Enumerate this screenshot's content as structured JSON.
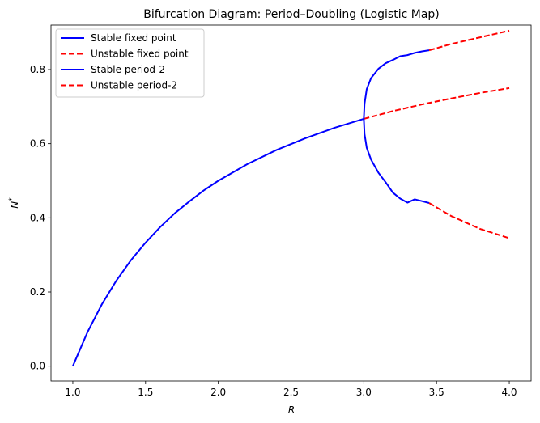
{
  "chart_data": {
    "type": "line",
    "title": "Bifurcation Diagram: Period–Doubling (Logistic Map)",
    "xlabel": "R",
    "ylabel": "N*",
    "xlim": [
      0.85,
      4.15
    ],
    "ylim": [
      -0.04,
      0.92
    ],
    "xticks": [
      "1.0",
      "1.5",
      "2.0",
      "2.5",
      "3.0",
      "3.5",
      "4.0"
    ],
    "yticks": [
      "0.0",
      "0.2",
      "0.4",
      "0.6",
      "0.8"
    ],
    "legend_position": "top-left",
    "grid": false,
    "series": [
      {
        "name": "Stable fixed point",
        "color": "#0000ff",
        "style": "solid",
        "x": [
          1.0,
          1.1,
          1.2,
          1.3,
          1.4,
          1.5,
          1.6,
          1.7,
          1.8,
          1.9,
          2.0,
          2.2,
          2.4,
          2.6,
          2.8,
          3.0
        ],
        "y": [
          0.0,
          0.091,
          0.167,
          0.231,
          0.286,
          0.333,
          0.375,
          0.412,
          0.444,
          0.474,
          0.5,
          0.545,
          0.583,
          0.615,
          0.643,
          0.667
        ]
      },
      {
        "name": "Unstable fixed point",
        "color": "#ff0000",
        "style": "dashed",
        "x": [
          3.0,
          3.2,
          3.4,
          3.6,
          3.8,
          4.0
        ],
        "y": [
          0.667,
          0.688,
          0.706,
          0.722,
          0.737,
          0.75
        ]
      },
      {
        "name": "Stable period-2",
        "color": "#0000ff",
        "style": "solid",
        "branches": [
          {
            "x": [
              3.0,
              3.005,
              3.02,
              3.05,
              3.1,
              3.15,
              3.2,
              3.25,
              3.3,
              3.35,
              3.4,
              3.449
            ],
            "y": [
              0.667,
              0.708,
              0.747,
              0.777,
              0.802,
              0.817,
              0.826,
              0.836,
              0.839,
              0.845,
              0.849,
              0.852
            ]
          },
          {
            "x": [
              3.0,
              3.005,
              3.02,
              3.05,
              3.1,
              3.15,
              3.2,
              3.25,
              3.3,
              3.35,
              3.4,
              3.449
            ],
            "y": [
              0.667,
              0.626,
              0.589,
              0.557,
              0.522,
              0.496,
              0.468,
              0.452,
              0.441,
              0.45,
              0.445,
              0.44
            ]
          }
        ]
      },
      {
        "name": "Unstable period-2",
        "color": "#ff0000",
        "style": "dashed",
        "branches": [
          {
            "x": [
              3.449,
              3.6,
              3.8,
              4.0
            ],
            "y": [
              0.852,
              0.869,
              0.887,
              0.905
            ]
          },
          {
            "x": [
              3.449,
              3.6,
              3.8,
              4.0
            ],
            "y": [
              0.44,
              0.405,
              0.37,
              0.345
            ]
          }
        ]
      }
    ]
  }
}
